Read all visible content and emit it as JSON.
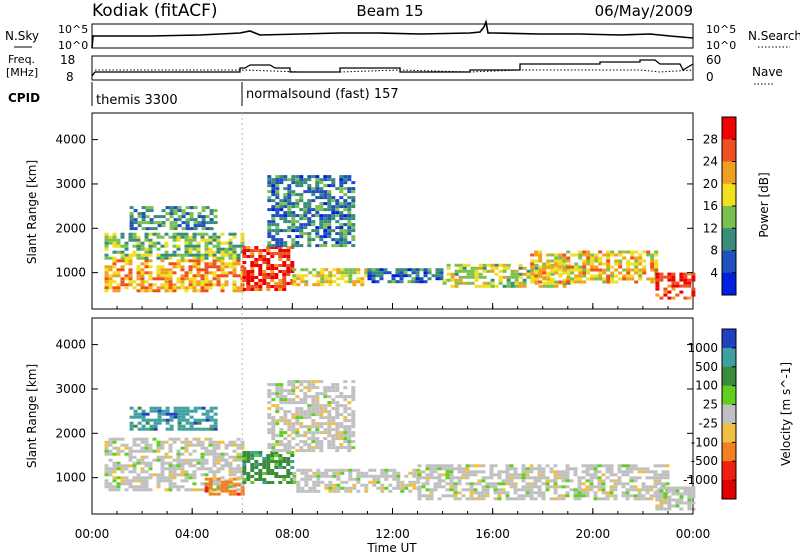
{
  "header": {
    "station": "Kodiak (fitACF)",
    "beam": "Beam 15",
    "date": "06/May/2009"
  },
  "top_panels": {
    "nsky_label": "N.Sky",
    "nsearch_label": "N.Search",
    "sky_tick_high": "10^5",
    "sky_tick_low": "10^0",
    "freq_label_line1": "Freq.",
    "freq_label_line2": "[MHz]",
    "freq_tick_high": "18",
    "freq_tick_low": "8",
    "nave_label": "Nave",
    "nave_tick_high": "60",
    "nave_tick_low": "0",
    "cpid_label": "CPID",
    "cpid_segments": [
      {
        "name": "themis 3300",
        "start": 0.0,
        "end": 6.0
      },
      {
        "name": "normalsound (fast) 157",
        "start": 6.0,
        "end": 24.0
      }
    ]
  },
  "chart_data": [
    {
      "type": "heatmap",
      "title": "Power",
      "xlabel": "Time UT",
      "ylabel": "Slant Range [km]",
      "x_ticks": [
        "00:00",
        "04:00",
        "08:00",
        "12:00",
        "16:00",
        "20:00",
        "00:00"
      ],
      "x_range_hours": [
        0,
        24
      ],
      "y_ticks": [
        1000,
        2000,
        3000,
        4000
      ],
      "ylim": [
        180,
        4600
      ],
      "colorbar_label": "Power [dB]",
      "colorbar_ticks": [
        4,
        8,
        12,
        16,
        20,
        24,
        28
      ],
      "colorbar_range": [
        0,
        32
      ],
      "colors": [
        "#0020e0",
        "#2050c0",
        "#3a8c7a",
        "#7ac050",
        "#f0e020",
        "#f0a020",
        "#f05020",
        "#f00000"
      ],
      "regions": [
        {
          "start": 0.5,
          "end": 6.0,
          "range_min": 600,
          "range_max": 1300,
          "value": 22
        },
        {
          "start": 0.5,
          "end": 6.0,
          "range_min": 1300,
          "range_max": 1900,
          "value": 14
        },
        {
          "start": 1.5,
          "end": 5.0,
          "range_min": 2000,
          "range_max": 2500,
          "value": 10
        },
        {
          "start": 6.0,
          "end": 8.0,
          "range_min": 600,
          "range_max": 1600,
          "value": 28
        },
        {
          "start": 8.0,
          "end": 11.0,
          "range_min": 700,
          "range_max": 1100,
          "value": 18
        },
        {
          "start": 7.0,
          "end": 10.5,
          "range_min": 1600,
          "range_max": 3200,
          "value": 9
        },
        {
          "start": 11.0,
          "end": 14.0,
          "range_min": 800,
          "range_max": 1100,
          "value": 8
        },
        {
          "start": 14.0,
          "end": 19.0,
          "range_min": 700,
          "range_max": 1200,
          "value": 16
        },
        {
          "start": 17.5,
          "end": 22.5,
          "range_min": 800,
          "range_max": 1500,
          "value": 20
        },
        {
          "start": 22.5,
          "end": 24.0,
          "range_min": 400,
          "range_max": 1000,
          "value": 28
        }
      ]
    },
    {
      "type": "heatmap",
      "title": "Velocity",
      "xlabel": "Time UT",
      "ylabel": "Slant Range [km]",
      "x_ticks": [
        "00:00",
        "04:00",
        "08:00",
        "12:00",
        "16:00",
        "20:00",
        "00:00"
      ],
      "x_range_hours": [
        0,
        24
      ],
      "y_ticks": [
        1000,
        2000,
        3000,
        4000
      ],
      "ylim": [
        180,
        4600
      ],
      "colorbar_label": "Velocity [m s^-1]",
      "colorbar_ticks": [
        "1000",
        "500",
        "100",
        "25",
        "-25",
        "-100",
        "-500",
        "-1000"
      ],
      "colors": [
        "#2040c0",
        "#40a0a0",
        "#3a8c3a",
        "#60d020",
        "#c0c0c0",
        "#f0c040",
        "#f08020",
        "#f02010",
        "#e00000"
      ],
      "regions": [
        {
          "start": 1.5,
          "end": 5.0,
          "range_min": 2100,
          "range_max": 2600,
          "value": 800
        },
        {
          "start": 0.5,
          "end": 6.0,
          "range_min": 1300,
          "range_max": 1900,
          "value": 0
        },
        {
          "start": 0.5,
          "end": 6.0,
          "range_min": 700,
          "range_max": 1300,
          "value": 0
        },
        {
          "start": 4.5,
          "end": 6.0,
          "range_min": 600,
          "range_max": 1000,
          "value": -120
        },
        {
          "start": 6.0,
          "end": 8.0,
          "range_min": 900,
          "range_max": 1600,
          "value": 150
        },
        {
          "start": 7.0,
          "end": 10.5,
          "range_min": 1600,
          "range_max": 3200,
          "value": 0
        },
        {
          "start": 8.0,
          "end": 13.0,
          "range_min": 700,
          "range_max": 1200,
          "value": 0
        },
        {
          "start": 13.0,
          "end": 23.0,
          "range_min": 500,
          "range_max": 1300,
          "value": 0
        },
        {
          "start": 22.5,
          "end": 24.0,
          "range_min": 300,
          "range_max": 800,
          "value": 0
        }
      ]
    }
  ]
}
